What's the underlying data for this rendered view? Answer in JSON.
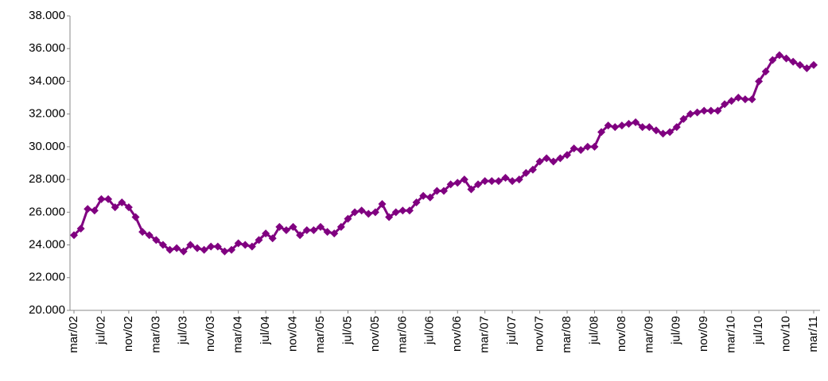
{
  "chart_data": {
    "type": "line",
    "categories": [
      "mar/02",
      null,
      null,
      null,
      "jul/02",
      null,
      null,
      null,
      "nov/02",
      null,
      null,
      null,
      "mar/03",
      null,
      null,
      null,
      "jul/03",
      null,
      null,
      null,
      "nov/03",
      null,
      null,
      null,
      "mar/04",
      null,
      null,
      null,
      "jul/04",
      null,
      null,
      null,
      "nov/04",
      null,
      null,
      null,
      "mar/05",
      null,
      null,
      null,
      "jul/05",
      null,
      null,
      null,
      "nov/05",
      null,
      null,
      null,
      "mar/06",
      null,
      null,
      null,
      "jul/06",
      null,
      null,
      null,
      "nov/06",
      null,
      null,
      null,
      "mar/07",
      null,
      null,
      null,
      "jul/07",
      null,
      null,
      null,
      "nov/07",
      null,
      null,
      null,
      "mar/08",
      null,
      null,
      null,
      "jul/08",
      null,
      null,
      null,
      "nov/08",
      null,
      null,
      null,
      "mar/09",
      null,
      null,
      null,
      "jul/09",
      null,
      null,
      null,
      "nov/09",
      null,
      null,
      null,
      "mar/10",
      null,
      null,
      null,
      "jul/10",
      null,
      null,
      null,
      "nov/10",
      null,
      null,
      null,
      "mar/11"
    ],
    "series": [
      {
        "color": "#800080",
        "values": [
          24600,
          25000,
          26200,
          26100,
          26800,
          26800,
          26300,
          26600,
          26300,
          25700,
          24800,
          24600,
          24300,
          24000,
          23700,
          23800,
          23600,
          24000,
          23800,
          23700,
          23900,
          23900,
          23600,
          23700,
          24100,
          24000,
          23900,
          24300,
          24700,
          24400,
          25100,
          24900,
          25100,
          24600,
          24900,
          24900,
          25100,
          24800,
          24700,
          25100,
          25600,
          26000,
          26100,
          25900,
          26000,
          26500,
          25700,
          26000,
          26100,
          26100,
          26600,
          27000,
          26900,
          27300,
          27300,
          27700,
          27800,
          28000,
          27400,
          27700,
          27900,
          27900,
          27900,
          28100,
          27900,
          28000,
          28400,
          28600,
          29100,
          29300,
          29100,
          29300,
          29500,
          29900,
          29800,
          30000,
          30000,
          30900,
          31300,
          31200,
          31300,
          31400,
          31500,
          31200,
          31200,
          31000,
          30800,
          30900,
          31200,
          31700,
          32000,
          32100,
          32200,
          32200,
          32200,
          32600,
          32800,
          33000,
          32900,
          32900,
          34000,
          34600,
          35300,
          35600,
          35400,
          35200,
          35000,
          34800,
          35000
        ]
      }
    ],
    "ylim": [
      20000,
      38000
    ],
    "yticks": [
      {
        "value": 20000,
        "label": "20.000"
      },
      {
        "value": 22000,
        "label": "22.000"
      },
      {
        "value": 24000,
        "label": "24.000"
      },
      {
        "value": 26000,
        "label": "26.000"
      },
      {
        "value": 28000,
        "label": "28.000"
      },
      {
        "value": 30000,
        "label": "30.000"
      },
      {
        "value": 32000,
        "label": "32.000"
      },
      {
        "value": 34000,
        "label": "34.000"
      },
      {
        "value": 36000,
        "label": "36.000"
      },
      {
        "value": 38000,
        "label": "38.000"
      }
    ],
    "grid": false
  }
}
